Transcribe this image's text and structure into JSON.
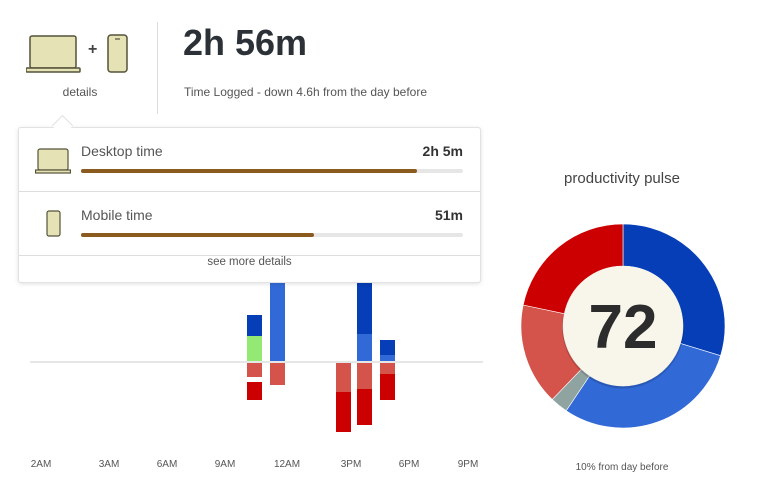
{
  "header": {
    "devices_icons": [
      "laptop-icon",
      "plus-icon",
      "phone-icon"
    ],
    "details_label": "details",
    "total_time": "2h 56m",
    "subtitle": "Time Logged - down 4.6h from the day before"
  },
  "popover": {
    "rows": [
      {
        "icon": "laptop-icon",
        "label": "Desktop time",
        "value": "2h 5m",
        "progress": 0.88
      },
      {
        "icon": "phone-icon",
        "label": "Mobile time",
        "value": "51m",
        "progress": 0.61
      }
    ],
    "more_label": "see more details"
  },
  "colors": {
    "very_productive": "#053eb6",
    "productive": "#3169d6",
    "neutral_green": "#94e874",
    "distracting": "#d4534a",
    "very_distracting": "#cc0000",
    "neutral": "#8fa3a0",
    "progress": "#8a5a1f"
  },
  "chart_data": [
    {
      "type": "bar",
      "stacked": true,
      "x_tick_labels": [
        "2AM",
        "3AM",
        "6AM",
        "9AM",
        "12AM",
        "3PM",
        "6PM",
        "9PM"
      ],
      "bars": [
        {
          "position": "10AM",
          "up": [
            {
              "color": "#94e874",
              "value": 25
            },
            {
              "color": "#053eb6",
              "value": 21
            }
          ],
          "down": [
            {
              "color": "#d4534a",
              "value": 14
            },
            {
              "color": "#cc0000",
              "value": 18
            }
          ]
        },
        {
          "position": "11AM",
          "up": [
            {
              "color": "#3169d6",
              "value": 82
            }
          ],
          "down": [
            {
              "color": "#d4534a",
              "value": 22
            }
          ]
        },
        {
          "position": "2PM",
          "up": [],
          "down": [
            {
              "color": "#d4534a",
              "value": 29
            },
            {
              "color": "#cc0000",
              "value": 40
            }
          ]
        },
        {
          "position": "3PM",
          "up": [
            {
              "color": "#3169d6",
              "value": 27
            },
            {
              "color": "#053eb6",
              "value": 55
            }
          ],
          "down": [
            {
              "color": "#d4534a",
              "value": 26
            },
            {
              "color": "#cc0000",
              "value": 36
            }
          ]
        },
        {
          "position": "4PM",
          "up": [
            {
              "color": "#3169d6",
              "value": 6
            },
            {
              "color": "#053eb6",
              "value": 15
            }
          ],
          "down": [
            {
              "color": "#d4534a",
              "value": 11
            },
            {
              "color": "#cc0000",
              "value": 26
            }
          ]
        }
      ],
      "grid": false
    },
    {
      "type": "pie",
      "donut": true,
      "title": "productivity pulse",
      "center_value": "72",
      "caption": "10% from day before",
      "slices": [
        {
          "color": "#053eb6",
          "percent": 29.7
        },
        {
          "color": "#3169d6",
          "percent": 29.7
        },
        {
          "color": "#8fa3a0",
          "percent": 2.8
        },
        {
          "color": "#d4534a",
          "percent": 16.1
        },
        {
          "color": "#cc0000",
          "percent": 21.7
        }
      ]
    }
  ]
}
